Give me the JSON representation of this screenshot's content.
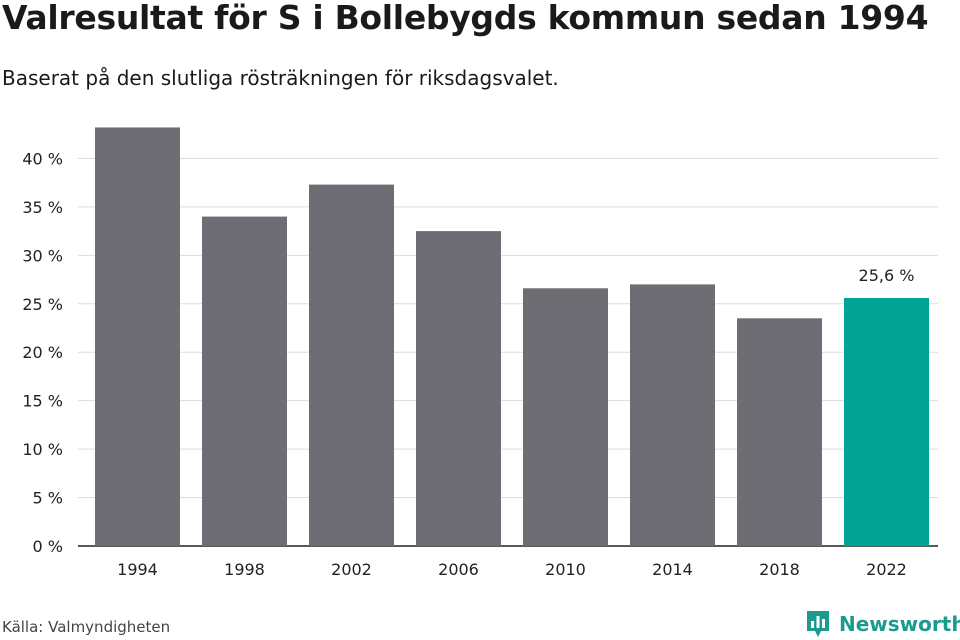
{
  "chart_data": {
    "type": "bar",
    "title": "Valresultat för S i Bollebygds kommun sedan 1994",
    "subtitle": "Baserat på den slutliga rösträkningen för riksdagsvalet.",
    "categories": [
      "1994",
      "1998",
      "2002",
      "2006",
      "2010",
      "2014",
      "2018",
      "2022"
    ],
    "values": [
      43.2,
      34.0,
      37.3,
      32.5,
      26.6,
      27.0,
      23.5,
      25.6
    ],
    "ylim": [
      0,
      45
    ],
    "yticks": [
      0,
      5,
      10,
      15,
      20,
      25,
      30,
      35,
      40
    ],
    "ytick_labels": [
      "0 %",
      "5 %",
      "10 %",
      "15 %",
      "20 %",
      "25 %",
      "30 %",
      "35 %",
      "40 %"
    ],
    "data_labels": [
      "",
      "",
      "",
      "",
      "",
      "",
      "",
      "25,6 %"
    ],
    "grid": true,
    "colors": {
      "bar": "#6e6d73",
      "highlight": "#00a394",
      "grid": "#dddddd",
      "axis": "#222222"
    },
    "highlight_index": 7
  },
  "footer": {
    "source": "Källa: Valmyndigheten",
    "brand": "Newsworthy",
    "brand_icon": "newsworthy-logo-icon"
  }
}
